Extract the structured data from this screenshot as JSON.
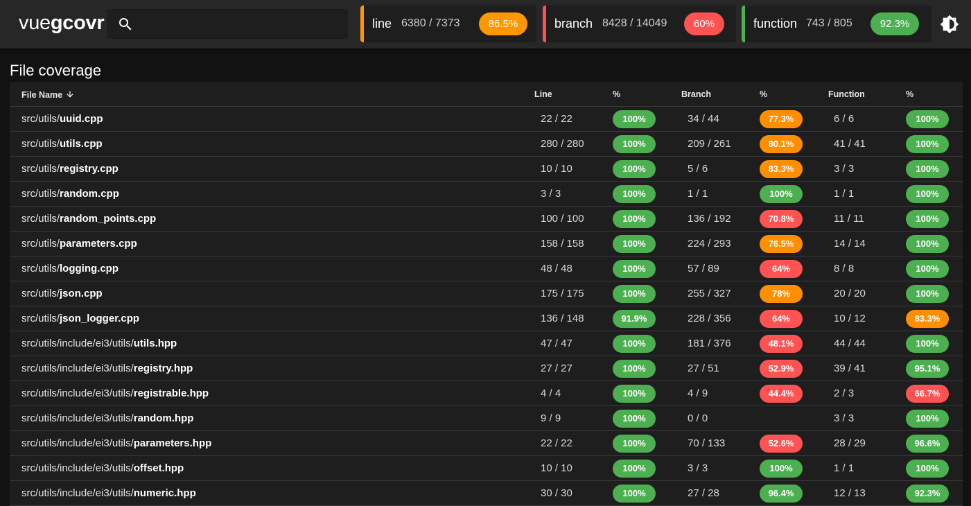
{
  "app": {
    "logo_light": "vue",
    "logo_bold": "gcovr"
  },
  "search": {
    "placeholder": ""
  },
  "summary": [
    {
      "label": "line",
      "count": "6380 / 7373",
      "pct": "86.5%",
      "color": "#ff9800"
    },
    {
      "label": "branch",
      "count": "8428 / 14049",
      "pct": "60%",
      "color": "#ff5252"
    },
    {
      "label": "function",
      "count": "743 / 805",
      "pct": "92.3%",
      "color": "#4caf50"
    }
  ],
  "page": {
    "title": "File coverage"
  },
  "table": {
    "headers": {
      "file": "File Name",
      "line": "Line",
      "line_pct": "%",
      "branch": "Branch",
      "branch_pct": "%",
      "function": "Function",
      "function_pct": "%"
    },
    "rows": [
      {
        "dir": "src/utils/",
        "file": "uuid.cpp",
        "line": "22 / 22",
        "line_pct": "100%",
        "lc": "g",
        "branch": "34 / 44",
        "branch_pct": "77.3%",
        "bc": "o",
        "function": "6 / 6",
        "function_pct": "100%",
        "fc": "g"
      },
      {
        "dir": "src/utils/",
        "file": "utils.cpp",
        "line": "280 / 280",
        "line_pct": "100%",
        "lc": "g",
        "branch": "209 / 261",
        "branch_pct": "80.1%",
        "bc": "o",
        "function": "41 / 41",
        "function_pct": "100%",
        "fc": "g"
      },
      {
        "dir": "src/utils/",
        "file": "registry.cpp",
        "line": "10 / 10",
        "line_pct": "100%",
        "lc": "g",
        "branch": "5 / 6",
        "branch_pct": "83.3%",
        "bc": "o",
        "function": "3 / 3",
        "function_pct": "100%",
        "fc": "g"
      },
      {
        "dir": "src/utils/",
        "file": "random.cpp",
        "line": "3 / 3",
        "line_pct": "100%",
        "lc": "g",
        "branch": "1 / 1",
        "branch_pct": "100%",
        "bc": "g",
        "function": "1 / 1",
        "function_pct": "100%",
        "fc": "g"
      },
      {
        "dir": "src/utils/",
        "file": "random_points.cpp",
        "line": "100 / 100",
        "line_pct": "100%",
        "lc": "g",
        "branch": "136 / 192",
        "branch_pct": "70.8%",
        "bc": "r",
        "function": "11 / 11",
        "function_pct": "100%",
        "fc": "g"
      },
      {
        "dir": "src/utils/",
        "file": "parameters.cpp",
        "line": "158 / 158",
        "line_pct": "100%",
        "lc": "g",
        "branch": "224 / 293",
        "branch_pct": "76.5%",
        "bc": "o",
        "function": "14 / 14",
        "function_pct": "100%",
        "fc": "g"
      },
      {
        "dir": "src/utils/",
        "file": "logging.cpp",
        "line": "48 / 48",
        "line_pct": "100%",
        "lc": "g",
        "branch": "57 / 89",
        "branch_pct": "64%",
        "bc": "r",
        "function": "8 / 8",
        "function_pct": "100%",
        "fc": "g"
      },
      {
        "dir": "src/utils/",
        "file": "json.cpp",
        "line": "175 / 175",
        "line_pct": "100%",
        "lc": "g",
        "branch": "255 / 327",
        "branch_pct": "78%",
        "bc": "o",
        "function": "20 / 20",
        "function_pct": "100%",
        "fc": "g"
      },
      {
        "dir": "src/utils/",
        "file": "json_logger.cpp",
        "line": "136 / 148",
        "line_pct": "91.9%",
        "lc": "g",
        "branch": "228 / 356",
        "branch_pct": "64%",
        "bc": "r",
        "function": "10 / 12",
        "function_pct": "83.3%",
        "fc": "o"
      },
      {
        "dir": "src/utils/include/ei3/utils/",
        "file": "utils.hpp",
        "line": "47 / 47",
        "line_pct": "100%",
        "lc": "g",
        "branch": "181 / 376",
        "branch_pct": "48.1%",
        "bc": "r",
        "function": "44 / 44",
        "function_pct": "100%",
        "fc": "g"
      },
      {
        "dir": "src/utils/include/ei3/utils/",
        "file": "registry.hpp",
        "line": "27 / 27",
        "line_pct": "100%",
        "lc": "g",
        "branch": "27 / 51",
        "branch_pct": "52.9%",
        "bc": "r",
        "function": "39 / 41",
        "function_pct": "95.1%",
        "fc": "g"
      },
      {
        "dir": "src/utils/include/ei3/utils/",
        "file": "registrable.hpp",
        "line": "4 / 4",
        "line_pct": "100%",
        "lc": "g",
        "branch": "4 / 9",
        "branch_pct": "44.4%",
        "bc": "r",
        "function": "2 / 3",
        "function_pct": "66.7%",
        "fc": "r"
      },
      {
        "dir": "src/utils/include/ei3/utils/",
        "file": "random.hpp",
        "line": "9 / 9",
        "line_pct": "100%",
        "lc": "g",
        "branch": "0 / 0",
        "branch_pct": "",
        "bc": "",
        "function": "3 / 3",
        "function_pct": "100%",
        "fc": "g"
      },
      {
        "dir": "src/utils/include/ei3/utils/",
        "file": "parameters.hpp",
        "line": "22 / 22",
        "line_pct": "100%",
        "lc": "g",
        "branch": "70 / 133",
        "branch_pct": "52.6%",
        "bc": "r",
        "function": "28 / 29",
        "function_pct": "96.6%",
        "fc": "g"
      },
      {
        "dir": "src/utils/include/ei3/utils/",
        "file": "offset.hpp",
        "line": "10 / 10",
        "line_pct": "100%",
        "lc": "g",
        "branch": "3 / 3",
        "branch_pct": "100%",
        "bc": "g",
        "function": "1 / 1",
        "function_pct": "100%",
        "fc": "g"
      },
      {
        "dir": "src/utils/include/ei3/utils/",
        "file": "numeric.hpp",
        "line": "30 / 30",
        "line_pct": "100%",
        "lc": "g",
        "branch": "27 / 28",
        "branch_pct": "96.4%",
        "bc": "g",
        "function": "12 / 13",
        "function_pct": "92.3%",
        "fc": "g"
      }
    ]
  }
}
